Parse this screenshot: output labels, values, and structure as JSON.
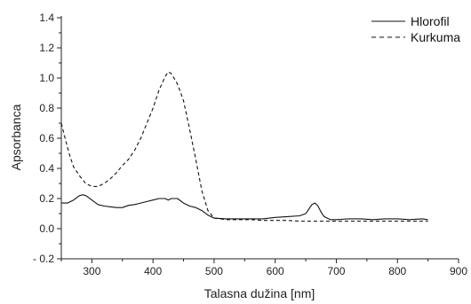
{
  "chart_data": {
    "type": "line",
    "title": "",
    "xlabel": "Talasna dužina [nm]",
    "ylabel": "Apsorbanca",
    "xlim": [
      250,
      900
    ],
    "ylim": [
      -0.2,
      1.4
    ],
    "xticks": [
      300,
      400,
      500,
      600,
      700,
      800,
      900
    ],
    "yticks": [
      -0.2,
      0.0,
      0.2,
      0.4,
      0.6,
      0.8,
      1.0,
      1.2,
      1.4
    ],
    "xtick_labels": [
      "300",
      "400",
      "500",
      "600",
      "700",
      "800",
      "900"
    ],
    "ytick_labels": [
      "- 0.2",
      "0.0",
      "0.2",
      "0.4",
      "0.6",
      "0.8",
      "1.0",
      "1.2",
      "1.4"
    ],
    "grid": false,
    "legend_position": "top-right",
    "series": [
      {
        "name": "Hlorofil",
        "style": "solid",
        "color": "#111111",
        "x": [
          250,
          260,
          270,
          280,
          285,
          290,
          300,
          310,
          320,
          330,
          340,
          350,
          360,
          370,
          380,
          390,
          400,
          410,
          420,
          425,
          430,
          440,
          450,
          460,
          470,
          480,
          490,
          500,
          520,
          540,
          560,
          580,
          600,
          620,
          640,
          650,
          655,
          660,
          665,
          670,
          675,
          680,
          690,
          700,
          720,
          740,
          760,
          780,
          800,
          820,
          840,
          850
        ],
        "y": [
          0.17,
          0.17,
          0.19,
          0.22,
          0.225,
          0.22,
          0.19,
          0.16,
          0.15,
          0.145,
          0.14,
          0.14,
          0.155,
          0.16,
          0.17,
          0.18,
          0.19,
          0.2,
          0.2,
          0.19,
          0.2,
          0.2,
          0.17,
          0.15,
          0.14,
          0.12,
          0.09,
          0.07,
          0.065,
          0.065,
          0.065,
          0.065,
          0.075,
          0.08,
          0.085,
          0.1,
          0.13,
          0.16,
          0.17,
          0.15,
          0.11,
          0.08,
          0.06,
          0.06,
          0.065,
          0.065,
          0.06,
          0.065,
          0.065,
          0.06,
          0.065,
          0.06
        ]
      },
      {
        "name": "Kurkuma",
        "style": "dashed",
        "color": "#111111",
        "x": [
          250,
          255,
          260,
          265,
          270,
          280,
          290,
          300,
          310,
          320,
          330,
          340,
          350,
          360,
          370,
          380,
          390,
          400,
          410,
          420,
          425,
          430,
          440,
          450,
          460,
          470,
          480,
          490,
          500,
          520,
          540,
          560,
          580,
          600,
          620,
          640,
          660,
          680,
          700,
          720,
          740,
          760,
          780,
          800,
          820,
          840,
          850
        ],
        "y": [
          0.7,
          0.62,
          0.54,
          0.47,
          0.41,
          0.35,
          0.3,
          0.28,
          0.28,
          0.3,
          0.33,
          0.37,
          0.42,
          0.46,
          0.52,
          0.6,
          0.7,
          0.8,
          0.92,
          1.01,
          1.04,
          1.03,
          0.96,
          0.85,
          0.66,
          0.46,
          0.25,
          0.12,
          0.07,
          0.06,
          0.06,
          0.06,
          0.055,
          0.055,
          0.055,
          0.05,
          0.05,
          0.05,
          0.05,
          0.05,
          0.05,
          0.05,
          0.05,
          0.05,
          0.05,
          0.05,
          0.05
        ]
      }
    ]
  }
}
